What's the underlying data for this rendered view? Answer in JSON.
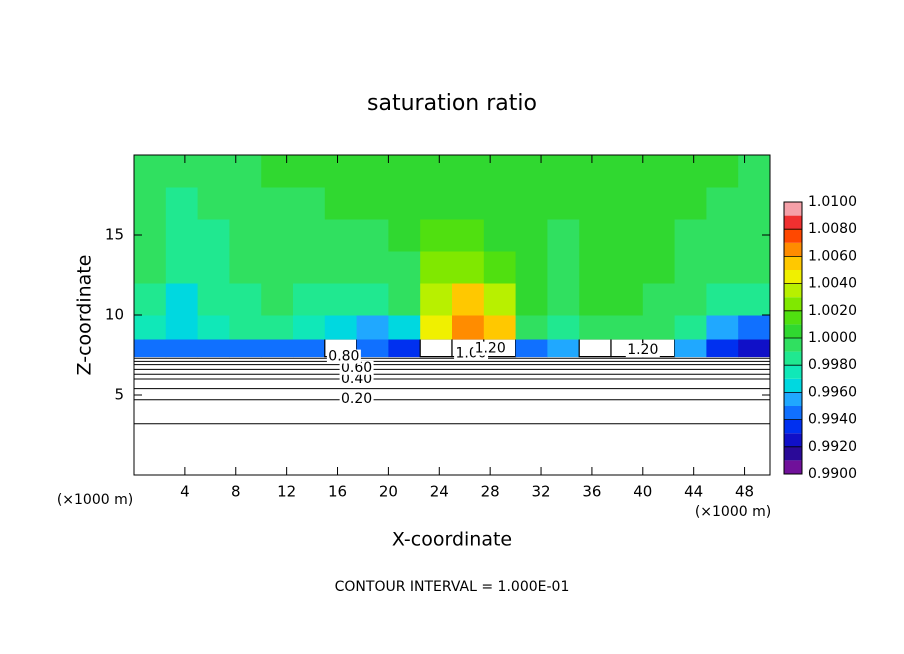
{
  "chart_data": {
    "type": "heatmap",
    "title": "saturation ratio",
    "x_label": "X-coordinate",
    "y_label": "Z-coordinate",
    "x_unit": "(×1000 m)",
    "y_unit": "(×1000 m)",
    "footer": "CONTOUR INTERVAL = 1.000E-01",
    "xlim": [
      0,
      50
    ],
    "ylim": [
      0,
      20
    ],
    "xticks": [
      4,
      8,
      12,
      16,
      20,
      24,
      28,
      32,
      36,
      40,
      44,
      48
    ],
    "yticks": [
      5,
      10,
      15
    ],
    "x_edges": [
      0,
      2.5,
      5,
      7.5,
      10,
      12.5,
      15,
      17.5,
      20,
      22.5,
      25,
      27.5,
      30,
      32.5,
      35,
      37.5,
      40,
      42.5,
      45,
      47.5,
      50
    ],
    "z_edges": [
      0,
      6,
      7.4,
      8.5,
      10,
      12,
      14,
      16,
      18,
      20
    ],
    "values": [
      [
        0.3,
        0.3,
        0.3,
        0.3,
        0.3,
        0.3,
        0.3,
        0.3,
        0.3,
        0.3,
        0.3,
        0.3,
        0.3,
        0.3,
        0.3,
        0.3,
        0.3,
        0.3,
        0.3,
        0.3
      ],
      [
        0.9,
        0.9,
        0.9,
        0.9,
        0.9,
        0.9,
        0.9,
        0.9,
        0.9,
        0.9,
        0.9,
        0.9,
        0.9,
        0.9,
        0.9,
        0.9,
        0.9,
        0.9,
        0.9,
        0.9
      ],
      [
        0.9945,
        0.9948,
        0.9945,
        0.9948,
        0.9945,
        0.995,
        1.05,
        0.9945,
        0.994,
        1.05,
        1.05,
        1.05,
        0.995,
        0.9955,
        1.05,
        1.05,
        1.05,
        0.996,
        0.994,
        0.993
      ],
      [
        0.9975,
        0.9965,
        0.9978,
        0.9985,
        0.9982,
        0.998,
        0.9965,
        0.9955,
        0.9965,
        1.005,
        1.007,
        1.006,
        1.0,
        0.999,
        0.9995,
        0.9998,
        0.9995,
        0.9985,
        0.996,
        0.995
      ],
      [
        0.999,
        0.997,
        0.9985,
        0.999,
        0.9992,
        0.999,
        0.9988,
        0.9985,
        0.9995,
        1.004,
        1.0055,
        1.004,
        1.001,
        1.0,
        1.0002,
        1.0002,
        1.0,
        0.9995,
        0.9985,
        0.9988
      ],
      [
        0.9995,
        0.9982,
        0.999,
        0.9992,
        0.9995,
        0.9995,
        0.9995,
        0.9995,
        1.0,
        1.0025,
        1.003,
        1.002,
        1.0005,
        1.0,
        1.0002,
        1.0002,
        1.0001,
        1.0,
        0.9995,
        0.9995
      ],
      [
        0.9995,
        0.9985,
        0.999,
        0.9992,
        0.9995,
        0.9998,
        1.0,
        1.0,
        1.0005,
        1.0012,
        1.0015,
        1.001,
        1.0002,
        1.0,
        1.0002,
        1.0002,
        1.0001,
        1.0,
        0.9998,
        0.9998
      ],
      [
        0.9998,
        0.999,
        0.9995,
        0.9998,
        1.0,
        1.0,
        1.0002,
        1.0002,
        1.0005,
        1.0008,
        1.0008,
        1.0005,
        1.0002,
        1.0002,
        1.0002,
        1.0002,
        1.0001,
        1.0001,
        1.0,
        1.0
      ],
      [
        1.0,
        0.9998,
        1.0,
        1.0,
        1.0001,
        1.0002,
        1.0002,
        1.0003,
        1.0003,
        1.0005,
        1.0005,
        1.0003,
        1.0002,
        1.0002,
        1.0002,
        1.0002,
        1.0001,
        1.0001,
        1.0001,
        1.0
      ]
    ],
    "color_levels": [
      0.99,
      0.991,
      0.992,
      0.993,
      0.994,
      0.995,
      0.996,
      0.997,
      0.998,
      0.999,
      1.0,
      1.001,
      1.002,
      1.003,
      1.004,
      1.005,
      1.006,
      1.007,
      1.008,
      1.009,
      1.01
    ],
    "colors": [
      "#70119a",
      "#2a0a98",
      "#1010c8",
      "#0030f0",
      "#1070ff",
      "#20a8ff",
      "#00d8e0",
      "#10e8b8",
      "#20e890",
      "#30e060",
      "#30d830",
      "#50e010",
      "#80e800",
      "#b8f000",
      "#f0f000",
      "#ffc800",
      "#ff8c00",
      "#ff4800",
      "#f03030",
      "#f5a0a8"
    ],
    "colorbar_ticks": [
      {
        "value": 0.99,
        "label": "0.9900"
      },
      {
        "value": 0.992,
        "label": "0.9920"
      },
      {
        "value": 0.994,
        "label": "0.9940"
      },
      {
        "value": 0.996,
        "label": "0.9960"
      },
      {
        "value": 0.998,
        "label": "0.9980"
      },
      {
        "value": 1.0,
        "label": "1.0000"
      },
      {
        "value": 1.002,
        "label": "1.0020"
      },
      {
        "value": 1.004,
        "label": "1.0040"
      },
      {
        "value": 1.006,
        "label": "1.0060"
      },
      {
        "value": 1.008,
        "label": "1.0080"
      },
      {
        "value": 1.01,
        "label": "1.0100"
      }
    ],
    "contour_lines": {
      "levels": [
        0.1,
        0.2,
        0.3,
        0.4,
        0.5,
        0.6,
        0.7,
        0.8,
        0.9
      ],
      "z": [
        3.2,
        4.7,
        5.4,
        6.0,
        6.3,
        6.6,
        6.9,
        7.1,
        7.3
      ]
    },
    "contour_labels": [
      {
        "value": 0.2,
        "label": "0.20",
        "x": 17.5,
        "z": 4.75
      },
      {
        "value": 0.4,
        "label": "0.40",
        "x": 17.5,
        "z": 6.0
      },
      {
        "value": 0.6,
        "label": "0.60",
        "x": 17.5,
        "z": 6.7
      },
      {
        "value": 0.8,
        "label": "0.80",
        "x": 16.5,
        "z": 7.4
      },
      {
        "value": 1.0,
        "label": "1.00",
        "x": 26.5,
        "z": 7.6
      },
      {
        "value": 1.2,
        "label": "1.20",
        "x": 28,
        "z": 7.9
      },
      {
        "value": 1.2,
        "label": "1.20",
        "x": 40,
        "z": 7.8
      }
    ]
  }
}
